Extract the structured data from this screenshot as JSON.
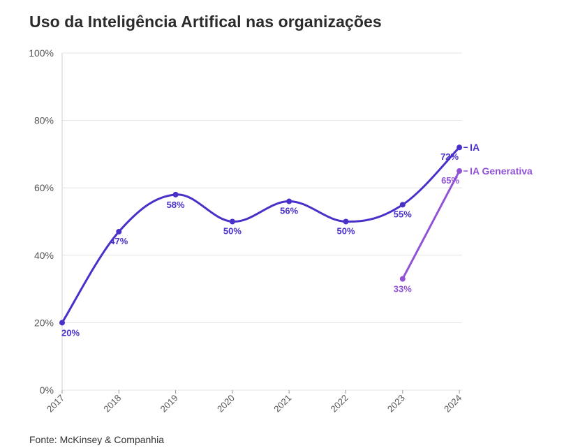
{
  "chart_data": {
    "type": "line",
    "title": "Uso da Inteligência Artifical nas organizações",
    "source": "Fonte: McKinsey & Companhia",
    "x": [
      "2017",
      "2018",
      "2019",
      "2020",
      "2021",
      "2022",
      "2023",
      "2024"
    ],
    "y_ticks": [
      "0%",
      "20%",
      "40%",
      "60%",
      "80%",
      "100%"
    ],
    "ylim": [
      0,
      100
    ],
    "grid": true,
    "series": [
      {
        "name": "IA",
        "color": "#4a2fc9",
        "points": [
          {
            "x": "2017",
            "y": 20,
            "label": "20%"
          },
          {
            "x": "2018",
            "y": 47,
            "label": "47%"
          },
          {
            "x": "2019",
            "y": 58,
            "label": "58%"
          },
          {
            "x": "2020",
            "y": 50,
            "label": "50%"
          },
          {
            "x": "2021",
            "y": 56,
            "label": "56%"
          },
          {
            "x": "2022",
            "y": 50,
            "label": "50%"
          },
          {
            "x": "2023",
            "y": 55,
            "label": "55%"
          },
          {
            "x": "2024",
            "y": 72,
            "label": "72%"
          }
        ]
      },
      {
        "name": "IA Generativa",
        "color": "#9152d6",
        "points": [
          {
            "x": "2023",
            "y": 33,
            "label": "33%"
          },
          {
            "x": "2024",
            "y": 65,
            "label": "65%"
          }
        ]
      }
    ]
  }
}
